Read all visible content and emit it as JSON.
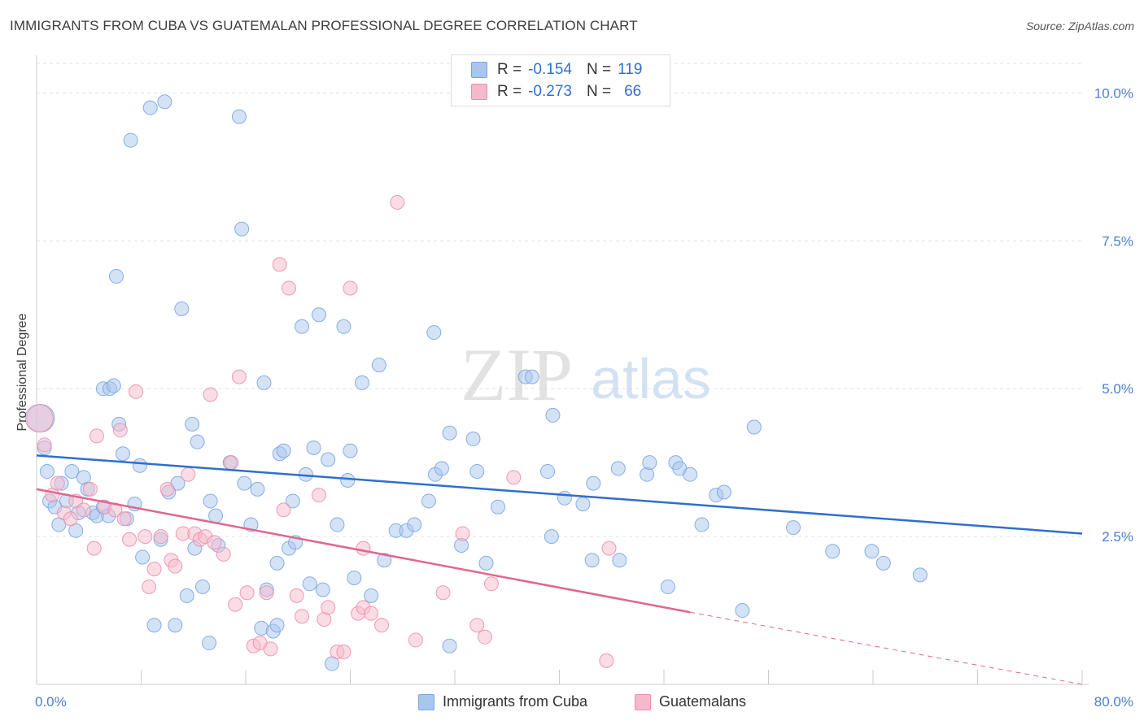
{
  "title": "IMMIGRANTS FROM CUBA VS GUATEMALAN PROFESSIONAL DEGREE CORRELATION CHART",
  "source": "Source: ZipAtlas.com",
  "watermark": {
    "zip": "ZIP",
    "atlas": "atlas"
  },
  "legend": {
    "rows": [
      {
        "r_label": "R =",
        "r_value": "-0.154",
        "n_label": "N =",
        "n_value": "119"
      },
      {
        "r_label": "R =",
        "r_value": "-0.273",
        "n_label": "N =",
        "n_value": "66"
      }
    ]
  },
  "bottom_legend": {
    "series1": "Immigrants from Cuba",
    "series2": "Guatemalans"
  },
  "colors": {
    "blue_fill": "#a9c6ee",
    "blue_stroke": "#7aa6e0",
    "blue_line": "#2f6fcc",
    "pink_fill": "#f6b9cc",
    "pink_stroke": "#ee8fab",
    "pink_line": "#e0668f",
    "tick_text": "#4a7fd0",
    "grid": "#e3e3e3"
  },
  "chart_data": {
    "type": "scatter",
    "title": "IMMIGRANTS FROM CUBA VS GUATEMALAN PROFESSIONAL DEGREE CORRELATION CHART",
    "xlabel": "",
    "ylabel": "Professional Degree",
    "xlim": [
      0,
      80
    ],
    "ylim": [
      0,
      10.5
    ],
    "x_tick_labels": [
      "0.0%",
      "80.0%"
    ],
    "y_ticks": [
      2.5,
      5.0,
      7.5,
      10.0
    ],
    "y_tick_labels": [
      "2.5%",
      "5.0%",
      "7.5%",
      "10.0%"
    ],
    "grid": true,
    "legend_position": "top-center",
    "series": [
      {
        "name": "Immigrants from Cuba",
        "color": "#a9c6ee",
        "r": -0.154,
        "n": 119,
        "trend": {
          "x": [
            0,
            80
          ],
          "y": [
            3.87,
            2.55
          ]
        },
        "points": [
          [
            0.3,
            4.5
          ],
          [
            0.6,
            4.0
          ],
          [
            0.8,
            3.6
          ],
          [
            1.0,
            3.1
          ],
          [
            1.4,
            3.0
          ],
          [
            1.7,
            2.7
          ],
          [
            1.9,
            3.4
          ],
          [
            2.3,
            3.1
          ],
          [
            2.7,
            3.6
          ],
          [
            3.0,
            2.6
          ],
          [
            3.2,
            2.9
          ],
          [
            3.6,
            3.5
          ],
          [
            3.9,
            3.3
          ],
          [
            4.3,
            2.9
          ],
          [
            4.6,
            2.85
          ],
          [
            5.1,
            3.0
          ],
          [
            5.1,
            5.0
          ],
          [
            5.5,
            2.85
          ],
          [
            5.6,
            5.0
          ],
          [
            5.9,
            5.05
          ],
          [
            6.1,
            6.9
          ],
          [
            6.3,
            4.4
          ],
          [
            6.6,
            3.9
          ],
          [
            6.9,
            2.8
          ],
          [
            7.2,
            9.2
          ],
          [
            7.5,
            3.05
          ],
          [
            7.9,
            3.7
          ],
          [
            8.1,
            2.15
          ],
          [
            8.7,
            9.75
          ],
          [
            9.0,
            1.0
          ],
          [
            9.5,
            2.45
          ],
          [
            9.8,
            9.85
          ],
          [
            10.1,
            3.25
          ],
          [
            10.6,
            1.0
          ],
          [
            10.8,
            3.4
          ],
          [
            11.1,
            6.35
          ],
          [
            11.5,
            1.5
          ],
          [
            11.9,
            4.4
          ],
          [
            12.1,
            2.3
          ],
          [
            12.3,
            4.1
          ],
          [
            12.7,
            1.65
          ],
          [
            13.2,
            0.7
          ],
          [
            13.3,
            3.1
          ],
          [
            13.7,
            2.85
          ],
          [
            13.9,
            2.35
          ],
          [
            14.8,
            3.75
          ],
          [
            15.5,
            9.6
          ],
          [
            15.7,
            7.7
          ],
          [
            15.9,
            3.4
          ],
          [
            16.4,
            2.7
          ],
          [
            16.9,
            3.3
          ],
          [
            17.4,
            5.1
          ],
          [
            17.6,
            1.6
          ],
          [
            17.2,
            0.95
          ],
          [
            18.1,
            0.9
          ],
          [
            18.4,
            1.0
          ],
          [
            18.4,
            2.05
          ],
          [
            18.6,
            3.9
          ],
          [
            18.9,
            3.95
          ],
          [
            19.3,
            2.3
          ],
          [
            19.6,
            3.1
          ],
          [
            19.8,
            2.4
          ],
          [
            20.3,
            6.05
          ],
          [
            20.6,
            3.55
          ],
          [
            20.9,
            1.7
          ],
          [
            21.2,
            4.0
          ],
          [
            21.6,
            6.25
          ],
          [
            21.9,
            1.6
          ],
          [
            22.3,
            3.8
          ],
          [
            22.6,
            0.35
          ],
          [
            23.0,
            2.7
          ],
          [
            23.5,
            6.05
          ],
          [
            23.8,
            3.45
          ],
          [
            24.0,
            3.95
          ],
          [
            24.3,
            1.8
          ],
          [
            24.9,
            5.1
          ],
          [
            25.6,
            1.5
          ],
          [
            26.2,
            5.4
          ],
          [
            26.6,
            2.1
          ],
          [
            27.5,
            2.6
          ],
          [
            28.3,
            2.6
          ],
          [
            28.9,
            2.7
          ],
          [
            30.0,
            3.1
          ],
          [
            30.4,
            5.95
          ],
          [
            30.5,
            3.55
          ],
          [
            31.0,
            3.65
          ],
          [
            31.6,
            4.25
          ],
          [
            31.6,
            0.65
          ],
          [
            32.5,
            2.35
          ],
          [
            33.4,
            4.15
          ],
          [
            33.7,
            3.6
          ],
          [
            34.4,
            2.05
          ],
          [
            35.3,
            3.0
          ],
          [
            37.4,
            5.2
          ],
          [
            37.9,
            5.2
          ],
          [
            39.1,
            3.6
          ],
          [
            39.4,
            2.5
          ],
          [
            39.5,
            4.55
          ],
          [
            40.4,
            3.15
          ],
          [
            41.8,
            3.05
          ],
          [
            42.5,
            2.1
          ],
          [
            42.6,
            3.4
          ],
          [
            44.5,
            3.65
          ],
          [
            44.6,
            2.1
          ],
          [
            46.7,
            3.55
          ],
          [
            46.9,
            3.75
          ],
          [
            48.3,
            1.65
          ],
          [
            48.9,
            3.75
          ],
          [
            49.2,
            3.65
          ],
          [
            50.0,
            3.55
          ],
          [
            50.9,
            2.7
          ],
          [
            52.0,
            3.2
          ],
          [
            52.6,
            3.25
          ],
          [
            54.0,
            1.25
          ],
          [
            54.9,
            4.35
          ],
          [
            57.9,
            2.65
          ],
          [
            60.9,
            2.25
          ],
          [
            63.9,
            2.25
          ],
          [
            64.8,
            2.05
          ],
          [
            67.6,
            1.85
          ]
        ]
      },
      {
        "name": "Guatemalans",
        "color": "#f6b9cc",
        "r": -0.273,
        "n": 66,
        "trend": {
          "x": [
            0,
            50
          ],
          "y": [
            3.3,
            1.22
          ]
        },
        "trend_dashed": {
          "x": [
            50,
            80
          ],
          "y": [
            1.22,
            0.0
          ]
        },
        "points": [
          [
            0.2,
            4.5
          ],
          [
            0.6,
            4.05
          ],
          [
            1.2,
            3.2
          ],
          [
            1.6,
            3.4
          ],
          [
            2.1,
            2.9
          ],
          [
            2.6,
            2.8
          ],
          [
            3.0,
            3.1
          ],
          [
            3.6,
            2.95
          ],
          [
            4.1,
            3.3
          ],
          [
            4.4,
            2.3
          ],
          [
            4.6,
            4.2
          ],
          [
            5.2,
            3.0
          ],
          [
            6.0,
            2.95
          ],
          [
            6.4,
            4.3
          ],
          [
            6.7,
            2.8
          ],
          [
            7.1,
            2.45
          ],
          [
            7.6,
            4.95
          ],
          [
            8.3,
            2.5
          ],
          [
            8.6,
            1.65
          ],
          [
            9.0,
            1.95
          ],
          [
            9.5,
            2.5
          ],
          [
            10.0,
            3.3
          ],
          [
            10.3,
            2.1
          ],
          [
            10.6,
            2.0
          ],
          [
            11.2,
            2.55
          ],
          [
            11.6,
            3.55
          ],
          [
            12.1,
            2.55
          ],
          [
            12.5,
            2.45
          ],
          [
            12.9,
            2.5
          ],
          [
            13.3,
            4.9
          ],
          [
            13.6,
            2.4
          ],
          [
            14.3,
            2.2
          ],
          [
            14.9,
            3.75
          ],
          [
            15.2,
            1.35
          ],
          [
            15.5,
            5.2
          ],
          [
            16.1,
            1.55
          ],
          [
            16.6,
            0.65
          ],
          [
            17.1,
            0.7
          ],
          [
            17.6,
            1.55
          ],
          [
            17.9,
            0.6
          ],
          [
            18.6,
            7.1
          ],
          [
            18.9,
            2.95
          ],
          [
            19.3,
            6.7
          ],
          [
            19.9,
            1.5
          ],
          [
            20.3,
            1.15
          ],
          [
            21.6,
            3.2
          ],
          [
            22.0,
            1.1
          ],
          [
            22.3,
            1.3
          ],
          [
            23.0,
            0.55
          ],
          [
            23.5,
            0.55
          ],
          [
            24.0,
            6.7
          ],
          [
            24.6,
            1.2
          ],
          [
            25.0,
            1.3
          ],
          [
            25.6,
            1.2
          ],
          [
            26.4,
            1.0
          ],
          [
            27.6,
            8.15
          ],
          [
            29.0,
            0.75
          ],
          [
            31.1,
            1.55
          ],
          [
            32.6,
            2.55
          ],
          [
            33.7,
            1.0
          ],
          [
            34.3,
            0.8
          ],
          [
            34.8,
            1.7
          ],
          [
            36.5,
            3.5
          ],
          [
            43.6,
            0.4
          ],
          [
            43.8,
            2.3
          ],
          [
            25.0,
            2.3
          ]
        ]
      }
    ]
  }
}
